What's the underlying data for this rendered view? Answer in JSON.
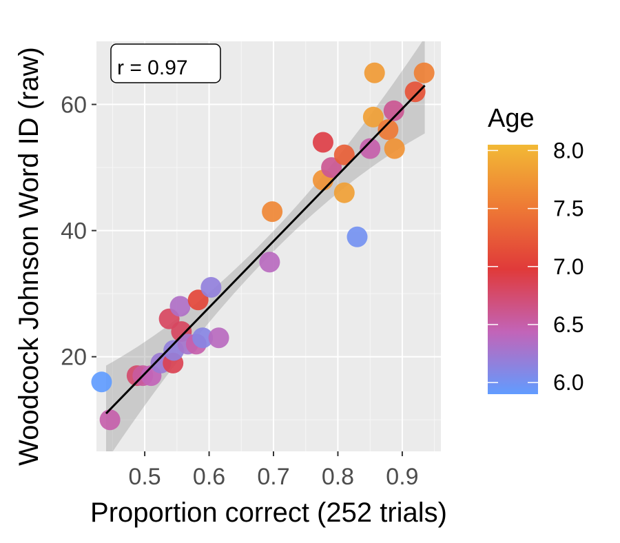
{
  "chart_data": {
    "type": "scatter",
    "title": "",
    "xlabel": "Proportion correct (252 trials)",
    "ylabel": "Woodcock Johnson Word ID (raw)",
    "xlim": [
      0.425,
      0.96
    ],
    "ylim": [
      5,
      70
    ],
    "x_ticks": [
      0.5,
      0.6,
      0.7,
      0.8,
      0.9
    ],
    "x_tick_labels": [
      "0.5",
      "0.6",
      "0.7",
      "0.8",
      "0.9"
    ],
    "y_ticks": [
      20,
      40,
      60
    ],
    "y_tick_labels": [
      "20",
      "40",
      "60"
    ],
    "grid": true,
    "annotation": "r = 0.97",
    "fit_line": {
      "x": [
        0.44,
        0.935
      ],
      "y": [
        11,
        63
      ]
    },
    "color_scale": {
      "title": "Age",
      "range": [
        5.9,
        8.05
      ],
      "ticks": [
        6.0,
        6.5,
        7.0,
        7.5,
        8.0
      ],
      "tick_labels": [
        "6.0",
        "6.5",
        "7.0",
        "7.5",
        "8.0"
      ],
      "colors": [
        "#619CFF",
        "#C264B8",
        "#E03A3A",
        "#EE7A35",
        "#F2B935"
      ],
      "legend_position": "right"
    },
    "points": [
      {
        "x": 0.433,
        "y": 16,
        "age": 6.0
      },
      {
        "x": 0.446,
        "y": 10,
        "age": 6.55
      },
      {
        "x": 0.488,
        "y": 17,
        "age": 6.8
      },
      {
        "x": 0.497,
        "y": 17,
        "age": 6.6
      },
      {
        "x": 0.51,
        "y": 17,
        "age": 6.5
      },
      {
        "x": 0.525,
        "y": 19,
        "age": 6.3
      },
      {
        "x": 0.538,
        "y": 26,
        "age": 6.85
      },
      {
        "x": 0.544,
        "y": 19,
        "age": 6.9
      },
      {
        "x": 0.545,
        "y": 21,
        "age": 6.25
      },
      {
        "x": 0.555,
        "y": 28,
        "age": 6.4
      },
      {
        "x": 0.557,
        "y": 24,
        "age": 6.85
      },
      {
        "x": 0.567,
        "y": 22,
        "age": 6.35
      },
      {
        "x": 0.58,
        "y": 22,
        "age": 6.55
      },
      {
        "x": 0.583,
        "y": 29,
        "age": 7.1
      },
      {
        "x": 0.59,
        "y": 23,
        "age": 6.2
      },
      {
        "x": 0.603,
        "y": 31,
        "age": 6.25
      },
      {
        "x": 0.615,
        "y": 23,
        "age": 6.45
      },
      {
        "x": 0.694,
        "y": 35,
        "age": 6.45
      },
      {
        "x": 0.698,
        "y": 43,
        "age": 7.6
      },
      {
        "x": 0.777,
        "y": 54,
        "age": 6.95
      },
      {
        "x": 0.777,
        "y": 48,
        "age": 7.7
      },
      {
        "x": 0.79,
        "y": 50,
        "age": 6.65
      },
      {
        "x": 0.81,
        "y": 52,
        "age": 7.3
      },
      {
        "x": 0.81,
        "y": 46,
        "age": 7.8
      },
      {
        "x": 0.83,
        "y": 39,
        "age": 6.1
      },
      {
        "x": 0.85,
        "y": 53,
        "age": 6.55
      },
      {
        "x": 0.855,
        "y": 58,
        "age": 7.8
      },
      {
        "x": 0.857,
        "y": 65,
        "age": 7.75
      },
      {
        "x": 0.878,
        "y": 56,
        "age": 7.5
      },
      {
        "x": 0.887,
        "y": 59,
        "age": 6.65
      },
      {
        "x": 0.888,
        "y": 53,
        "age": 7.7
      },
      {
        "x": 0.92,
        "y": 62,
        "age": 7.2
      },
      {
        "x": 0.934,
        "y": 65,
        "age": 7.55
      }
    ]
  }
}
